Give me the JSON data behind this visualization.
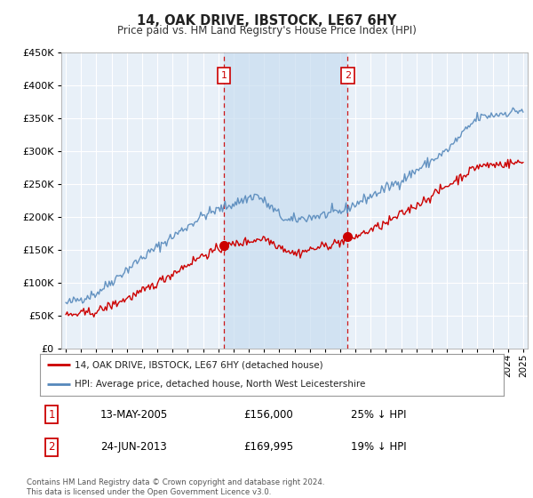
{
  "title": "14, OAK DRIVE, IBSTOCK, LE67 6HY",
  "subtitle": "Price paid vs. HM Land Registry's House Price Index (HPI)",
  "ylim": [
    0,
    450000
  ],
  "ytick_vals": [
    0,
    50000,
    100000,
    150000,
    200000,
    250000,
    300000,
    350000,
    400000,
    450000
  ],
  "sale1_x": 2005.36,
  "sale1_y": 156000,
  "sale2_x": 2013.48,
  "sale2_y": 169995,
  "legend_line1": "14, OAK DRIVE, IBSTOCK, LE67 6HY (detached house)",
  "legend_line2": "HPI: Average price, detached house, North West Leicestershire",
  "annotation1_date": "13-MAY-2005",
  "annotation1_price": "£156,000",
  "annotation1_hpi": "25% ↓ HPI",
  "annotation2_date": "24-JUN-2013",
  "annotation2_price": "£169,995",
  "annotation2_hpi": "19% ↓ HPI",
  "footer": "Contains HM Land Registry data © Crown copyright and database right 2024.\nThis data is licensed under the Open Government Licence v3.0.",
  "red_color": "#cc0000",
  "blue_color": "#5588bb",
  "bg_color": "#ffffff",
  "plot_bg": "#e8f0f8",
  "grid_color": "#ffffff",
  "shade_color": "#c8ddf0",
  "xmin": 1995,
  "xmax": 2025
}
